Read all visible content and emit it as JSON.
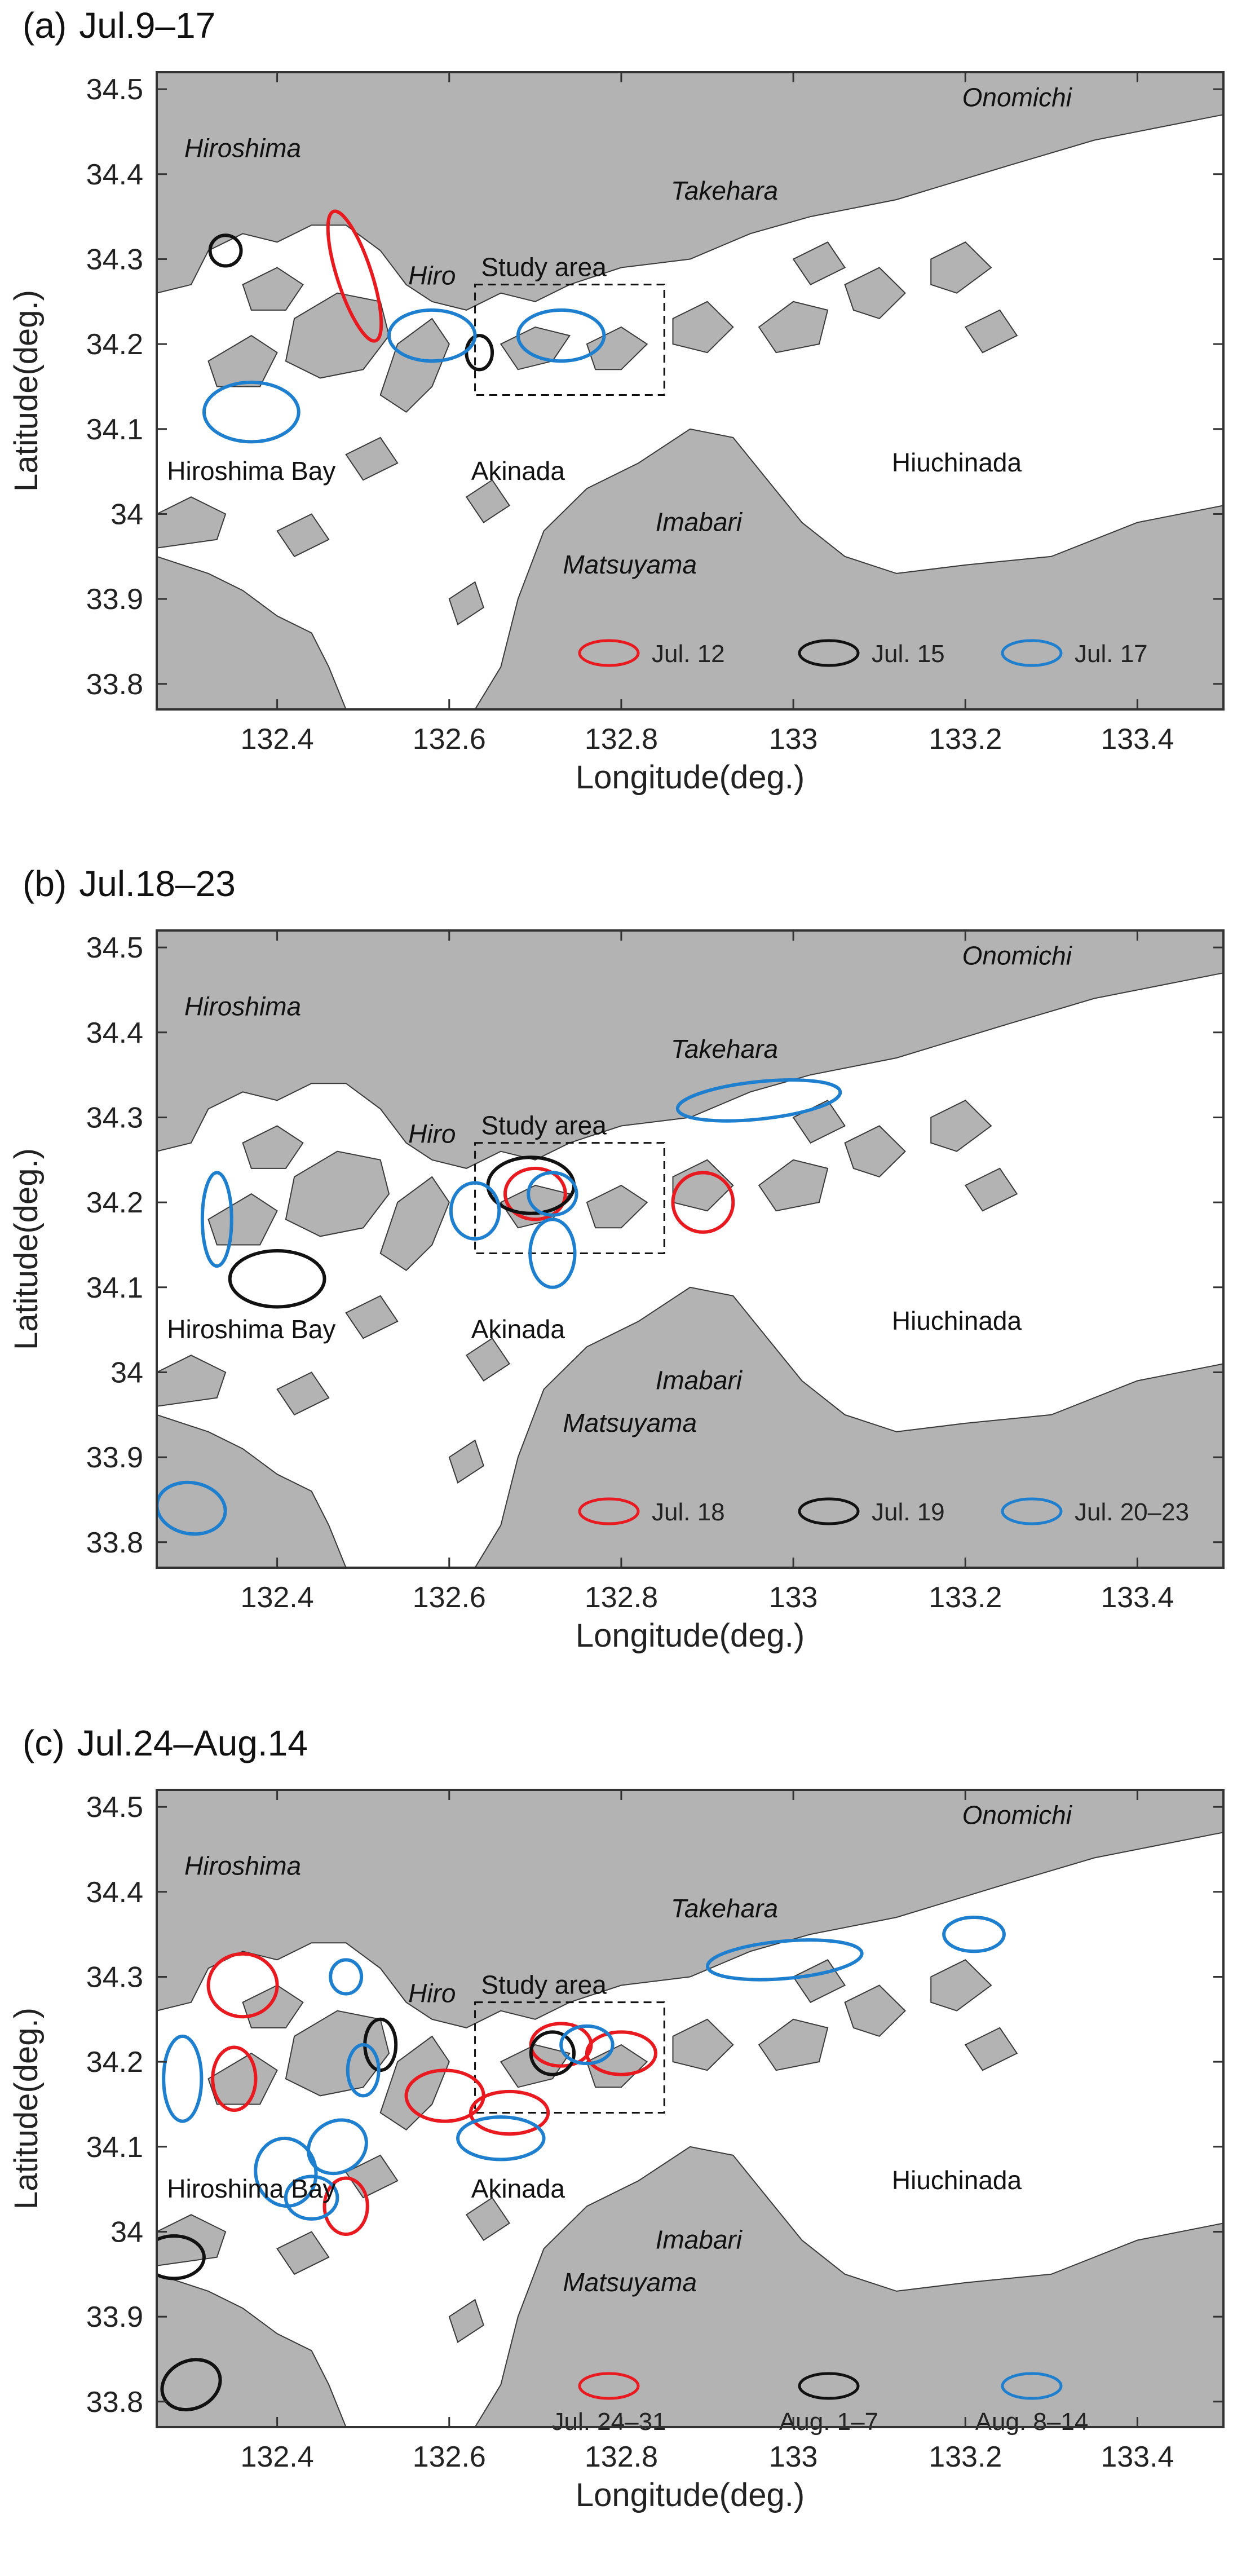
{
  "colors": {
    "land": "#b3b3b3",
    "sea": "#ffffff",
    "red": "#e8191f",
    "black": "#111111",
    "blue": "#1f7fcf"
  },
  "axes": {
    "xlabel": "Longitude(deg.)",
    "ylabel": "Latitude(deg.)",
    "xticks": [
      "132.4",
      "132.6",
      "132.8",
      "133",
      "133.2",
      "133.4"
    ],
    "xtick_values": [
      132.4,
      132.6,
      132.8,
      133.0,
      133.2,
      133.4
    ],
    "yticks": [
      "34.5",
      "34.4",
      "34.3",
      "34.2",
      "34.1",
      "34",
      "33.9",
      "33.8"
    ],
    "ytick_values": [
      34.5,
      34.4,
      34.3,
      34.2,
      34.1,
      34.0,
      33.9,
      33.8
    ],
    "xlim": [
      132.26,
      133.5
    ],
    "ylim": [
      33.77,
      34.52
    ]
  },
  "places": [
    {
      "name": "Hiroshima",
      "italic": true,
      "lon": 132.36,
      "lat": 34.42
    },
    {
      "name": "Hiro",
      "italic": true,
      "lon": 132.58,
      "lat": 34.27
    },
    {
      "name": "Takehara",
      "italic": true,
      "lon": 132.92,
      "lat": 34.37
    },
    {
      "name": "Onomichi",
      "italic": true,
      "lon": 133.26,
      "lat": 34.48
    },
    {
      "name": "Study area",
      "italic": false,
      "lon": 132.71,
      "lat": 34.28
    },
    {
      "name": "Hiroshima Bay",
      "italic": false,
      "lon": 132.37,
      "lat": 34.04
    },
    {
      "name": "Akinada",
      "italic": false,
      "lon": 132.68,
      "lat": 34.04
    },
    {
      "name": "Imabari",
      "italic": true,
      "lon": 132.89,
      "lat": 33.98
    },
    {
      "name": "Matsuyama",
      "italic": true,
      "lon": 132.81,
      "lat": 33.93
    },
    {
      "name": "Hiuchinada",
      "italic": false,
      "lon": 133.19,
      "lat": 34.05
    }
  ],
  "study_area": {
    "lon": [
      132.63,
      132.85
    ],
    "lat": [
      34.14,
      34.27
    ]
  },
  "panels": [
    {
      "label": "(a)",
      "title": "Jul.9–17",
      "legend": [
        {
          "label": "Jul. 12",
          "color": "red"
        },
        {
          "label": "Jul. 15",
          "color": "black"
        },
        {
          "label": "Jul. 17",
          "color": "blue"
        }
      ],
      "ellipses": [
        {
          "lon": 132.49,
          "lat": 34.28,
          "rlon": 0.02,
          "rlat": 0.08,
          "color": "red",
          "rot": -18
        },
        {
          "lon": 132.34,
          "lat": 34.31,
          "rlon": 0.018,
          "rlat": 0.018,
          "color": "black",
          "rot": 0
        },
        {
          "lon": 132.635,
          "lat": 34.19,
          "rlon": 0.015,
          "rlat": 0.02,
          "color": "black",
          "rot": 0
        },
        {
          "lon": 132.58,
          "lat": 34.21,
          "rlon": 0.05,
          "rlat": 0.03,
          "color": "blue",
          "rot": 0
        },
        {
          "lon": 132.73,
          "lat": 34.21,
          "rlon": 0.05,
          "rlat": 0.03,
          "color": "blue",
          "rot": 0
        },
        {
          "lon": 132.37,
          "lat": 34.12,
          "rlon": 0.055,
          "rlat": 0.035,
          "color": "blue",
          "rot": 0
        }
      ]
    },
    {
      "label": "(b)",
      "title": "Jul.18–23",
      "legend": [
        {
          "label": "Jul. 18",
          "color": "red"
        },
        {
          "label": "Jul. 19",
          "color": "black"
        },
        {
          "label": "Jul. 20–23",
          "color": "blue"
        }
      ],
      "ellipses": [
        {
          "lon": 132.7,
          "lat": 34.21,
          "rlon": 0.035,
          "rlat": 0.03,
          "color": "red",
          "rot": 0
        },
        {
          "lon": 132.895,
          "lat": 34.2,
          "rlon": 0.035,
          "rlat": 0.035,
          "color": "red",
          "rot": 0
        },
        {
          "lon": 132.695,
          "lat": 34.22,
          "rlon": 0.05,
          "rlat": 0.033,
          "color": "black",
          "rot": 0
        },
        {
          "lon": 132.4,
          "lat": 34.11,
          "rlon": 0.055,
          "rlat": 0.033,
          "color": "black",
          "rot": 0
        },
        {
          "lon": 132.96,
          "lat": 34.32,
          "rlon": 0.095,
          "rlat": 0.022,
          "color": "blue",
          "rot": -6
        },
        {
          "lon": 132.33,
          "lat": 34.18,
          "rlon": 0.017,
          "rlat": 0.055,
          "color": "blue",
          "rot": 0
        },
        {
          "lon": 132.63,
          "lat": 34.19,
          "rlon": 0.028,
          "rlat": 0.033,
          "color": "blue",
          "rot": 0
        },
        {
          "lon": 132.72,
          "lat": 34.21,
          "rlon": 0.028,
          "rlat": 0.025,
          "color": "blue",
          "rot": 0
        },
        {
          "lon": 132.72,
          "lat": 34.14,
          "rlon": 0.026,
          "rlat": 0.04,
          "color": "blue",
          "rot": 0
        },
        {
          "lon": 132.3,
          "lat": 33.84,
          "rlon": 0.04,
          "rlat": 0.03,
          "color": "blue",
          "rot": 10
        }
      ]
    },
    {
      "label": "(c)",
      "title": "Jul.24–Aug.14",
      "legend": [
        {
          "label": "Jul. 24–31",
          "color": "red"
        },
        {
          "label": "Aug. 1–7",
          "color": "black"
        },
        {
          "label": "Aug. 8–14",
          "color": "blue"
        }
      ],
      "ellipses": [
        {
          "lon": 132.36,
          "lat": 34.29,
          "rlon": 0.04,
          "rlat": 0.037,
          "color": "red",
          "rot": 0
        },
        {
          "lon": 132.35,
          "lat": 34.18,
          "rlon": 0.025,
          "rlat": 0.037,
          "color": "red",
          "rot": 0
        },
        {
          "lon": 132.595,
          "lat": 34.16,
          "rlon": 0.045,
          "rlat": 0.03,
          "color": "red",
          "rot": 0
        },
        {
          "lon": 132.67,
          "lat": 34.14,
          "rlon": 0.045,
          "rlat": 0.025,
          "color": "red",
          "rot": 0
        },
        {
          "lon": 132.73,
          "lat": 34.22,
          "rlon": 0.035,
          "rlat": 0.025,
          "color": "red",
          "rot": 0
        },
        {
          "lon": 132.8,
          "lat": 34.21,
          "rlon": 0.04,
          "rlat": 0.025,
          "color": "red",
          "rot": 0
        },
        {
          "lon": 132.48,
          "lat": 34.03,
          "rlon": 0.025,
          "rlat": 0.033,
          "color": "red",
          "rot": 0
        },
        {
          "lon": 132.52,
          "lat": 34.22,
          "rlon": 0.018,
          "rlat": 0.03,
          "color": "black",
          "rot": 0
        },
        {
          "lon": 132.72,
          "lat": 34.21,
          "rlon": 0.025,
          "rlat": 0.025,
          "color": "black",
          "rot": 0
        },
        {
          "lon": 132.28,
          "lat": 33.97,
          "rlon": 0.035,
          "rlat": 0.025,
          "color": "black",
          "rot": 0
        },
        {
          "lon": 132.3,
          "lat": 33.82,
          "rlon": 0.035,
          "rlat": 0.028,
          "color": "black",
          "rot": -25
        },
        {
          "lon": 132.29,
          "lat": 34.18,
          "rlon": 0.022,
          "rlat": 0.05,
          "color": "blue",
          "rot": 0
        },
        {
          "lon": 132.48,
          "lat": 34.3,
          "rlon": 0.018,
          "rlat": 0.02,
          "color": "blue",
          "rot": 0
        },
        {
          "lon": 132.5,
          "lat": 34.19,
          "rlon": 0.018,
          "rlat": 0.03,
          "color": "blue",
          "rot": 0
        },
        {
          "lon": 132.47,
          "lat": 34.1,
          "rlon": 0.035,
          "rlat": 0.03,
          "color": "blue",
          "rot": -30
        },
        {
          "lon": 132.41,
          "lat": 34.07,
          "rlon": 0.035,
          "rlat": 0.04,
          "color": "blue",
          "rot": -10
        },
        {
          "lon": 132.44,
          "lat": 34.04,
          "rlon": 0.03,
          "rlat": 0.025,
          "color": "blue",
          "rot": 0
        },
        {
          "lon": 132.66,
          "lat": 34.11,
          "rlon": 0.05,
          "rlat": 0.025,
          "color": "blue",
          "rot": 0
        },
        {
          "lon": 132.76,
          "lat": 34.22,
          "rlon": 0.03,
          "rlat": 0.022,
          "color": "blue",
          "rot": 0
        },
        {
          "lon": 132.99,
          "lat": 34.32,
          "rlon": 0.09,
          "rlat": 0.022,
          "color": "blue",
          "rot": -5
        },
        {
          "lon": 133.21,
          "lat": 34.35,
          "rlon": 0.035,
          "rlat": 0.02,
          "color": "blue",
          "rot": 0
        }
      ]
    }
  ]
}
